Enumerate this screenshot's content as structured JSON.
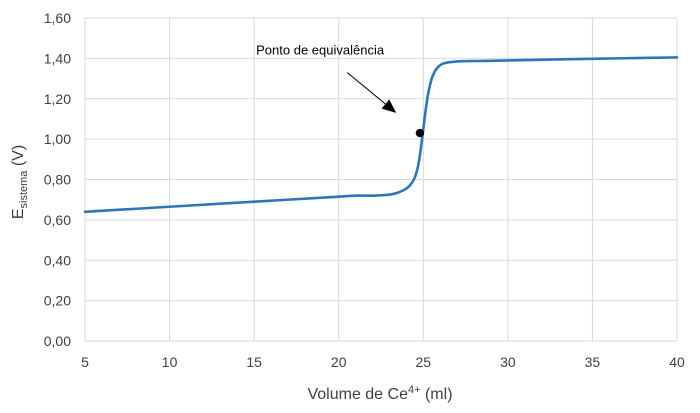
{
  "chart_data": {
    "type": "line",
    "title": "",
    "xlabel": {
      "prefix": "Volume de Ce",
      "sup": "4+",
      "suffix": " (ml)"
    },
    "ylabel": {
      "base": "E",
      "sub": "sistema",
      "suffix": " (V)"
    },
    "xlim": [
      5,
      40
    ],
    "ylim": [
      0,
      1.6
    ],
    "x_ticks": [
      5,
      10,
      15,
      20,
      25,
      30,
      35,
      40
    ],
    "x_tick_labels": [
      "5",
      "10",
      "15",
      "20",
      "25",
      "30",
      "35",
      "40"
    ],
    "y_ticks": [
      0,
      0.2,
      0.4,
      0.6,
      0.8,
      1.0,
      1.2,
      1.4,
      1.6
    ],
    "y_tick_labels": [
      "0,00",
      "0,20",
      "0,40",
      "0,60",
      "0,80",
      "1,00",
      "1,20",
      "1,40",
      "1,60"
    ],
    "grid": "both",
    "legend": "none",
    "line_color": "#2e75b6",
    "series": [
      {
        "x": [
          5,
          10,
          15,
          20,
          21,
          22,
          23,
          23.5,
          24,
          24.3,
          24.5,
          24.7,
          24.85,
          25.0,
          25.15,
          25.3,
          25.5,
          25.8,
          26.2,
          27,
          28,
          29,
          30,
          35,
          40
        ],
        "values": [
          0.64,
          0.665,
          0.69,
          0.715,
          0.72,
          0.72,
          0.725,
          0.735,
          0.755,
          0.78,
          0.81,
          0.87,
          0.95,
          1.05,
          1.15,
          1.23,
          1.3,
          1.35,
          1.375,
          1.385,
          1.387,
          1.388,
          1.39,
          1.398,
          1.405
        ]
      }
    ],
    "points": [
      {
        "x": 24.8,
        "y": 1.03,
        "color": "#000000"
      }
    ],
    "annotations": [
      {
        "text": "Ponto de equivalência",
        "x": 18.9,
        "y": 1.42,
        "arrow_from": [
          20.5,
          1.33
        ],
        "arrow_to": [
          23.4,
          1.13
        ]
      }
    ]
  }
}
